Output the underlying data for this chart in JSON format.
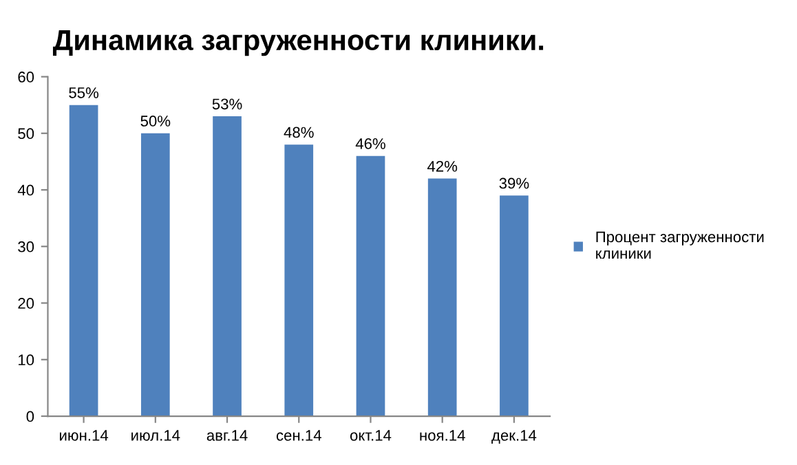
{
  "chart_data": {
    "type": "bar",
    "title": "Динамика загруженности клиники.",
    "categories": [
      "июн.14",
      "июл.14",
      "авг.14",
      "сен.14",
      "окт.14",
      "ноя.14",
      "дек.14"
    ],
    "series": [
      {
        "name": "Процент загруженности клиники",
        "color": "#4f81bd",
        "values": [
          55,
          50,
          53,
          48,
          46,
          42,
          39
        ],
        "value_labels": [
          "55%",
          "50%",
          "53%",
          "48%",
          "46%",
          "42%",
          "39%"
        ]
      }
    ],
    "ylim": [
      0,
      60
    ],
    "yticks": [
      0,
      10,
      20,
      30,
      40,
      50,
      60
    ],
    "grid": false,
    "legend": "right"
  }
}
